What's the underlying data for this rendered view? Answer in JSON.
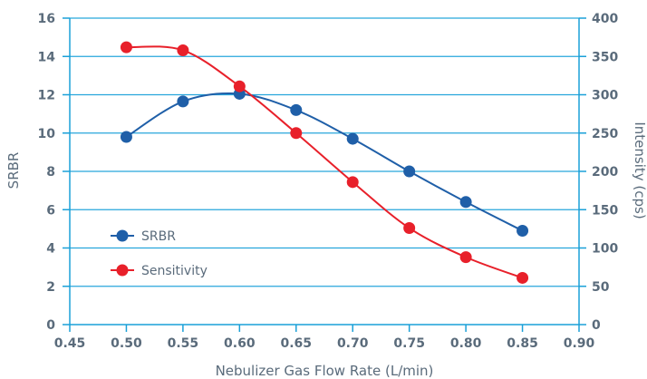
{
  "chart_data": {
    "type": "line",
    "xlabel": "Nebulizer Gas Flow Rate (L/min)",
    "ylabel_left": "SRBR",
    "ylabel_right": "Intensity (cps)",
    "xlim": [
      0.45,
      0.9
    ],
    "ylim_left": [
      0,
      16
    ],
    "ylim_right": [
      0,
      400
    ],
    "x_ticks": [
      "0.45",
      "0.50",
      "0.55",
      "0.60",
      "0.65",
      "0.70",
      "0.75",
      "0.80",
      "0.85",
      "0.90"
    ],
    "y_left_ticks": [
      "0",
      "2",
      "4",
      "6",
      "8",
      "10",
      "12",
      "14",
      "16"
    ],
    "y_right_ticks": [
      "0",
      "50",
      "100",
      "150",
      "200",
      "250",
      "300",
      "350",
      "400"
    ],
    "grid": "horizontal",
    "legend_position": "left-bottom",
    "series": [
      {
        "name": "SRBR",
        "axis": "left",
        "color": "#1f5fa8",
        "x": [
          0.5,
          0.55,
          0.6,
          0.65,
          0.7,
          0.75,
          0.8,
          0.85
        ],
        "y": [
          9.8,
          11.65,
          12.05,
          11.2,
          9.7,
          8.0,
          6.4,
          4.9
        ]
      },
      {
        "name": "Sensitivity",
        "axis": "right",
        "color": "#e8202a",
        "x": [
          0.5,
          0.55,
          0.6,
          0.65,
          0.7,
          0.75,
          0.8,
          0.85
        ],
        "y": [
          362,
          358,
          311,
          250,
          186,
          126,
          88,
          61
        ]
      }
    ],
    "axis_color": "#1aa0d8",
    "grid_color": "#27a6dc"
  }
}
